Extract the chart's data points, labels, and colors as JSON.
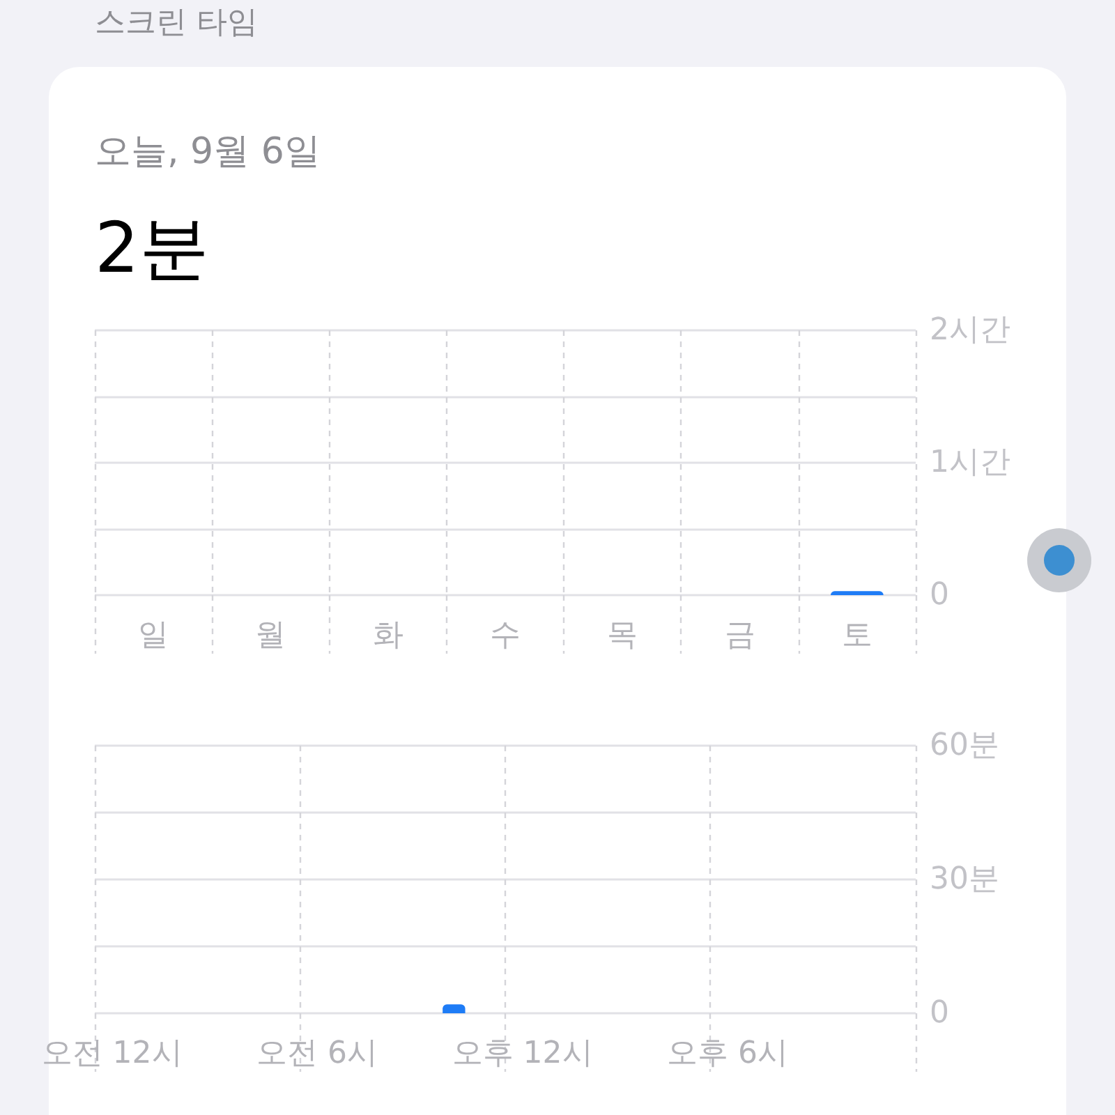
{
  "chart_data": [
    {
      "type": "bar",
      "title": "스크린 타임",
      "subtitle": "오늘, 9월 6일",
      "annotations": [
        "2분"
      ],
      "categories": [
        "일",
        "월",
        "화",
        "수",
        "목",
        "금",
        "토"
      ],
      "values": [
        0,
        0,
        0,
        0,
        0,
        0,
        0.03
      ],
      "color": "#1e7cf6",
      "ylim": [
        0,
        2
      ],
      "yticks": [
        0,
        {
          "value": 0.5,
          "label": null
        },
        {
          "value": 1,
          "label": "1시간"
        },
        {
          "value": 1.5,
          "label": null
        },
        {
          "value": 2,
          "label": "2시간"
        }
      ],
      "grid": true
    },
    {
      "type": "bar",
      "categories": [
        "오전 12시",
        null,
        null,
        null,
        null,
        null,
        "오전 6시",
        null,
        null,
        null,
        null,
        null,
        "오후 12시",
        null,
        null,
        null,
        null,
        null,
        "오후 6시",
        null,
        null,
        null,
        null,
        null
      ],
      "values": [
        0,
        0,
        0,
        0,
        0,
        0,
        0,
        0,
        0,
        0,
        2,
        0,
        0,
        0,
        0,
        0,
        0,
        0,
        0,
        0,
        0,
        0,
        0,
        0
      ],
      "color": "#1e7cf6",
      "ylim": [
        0,
        60
      ],
      "yticks": [
        0,
        {
          "value": 15,
          "label": null
        },
        {
          "value": 30,
          "label": "30분"
        },
        {
          "value": 45,
          "label": null
        },
        {
          "value": 60,
          "label": "60분"
        }
      ],
      "grid": true
    }
  ]
}
